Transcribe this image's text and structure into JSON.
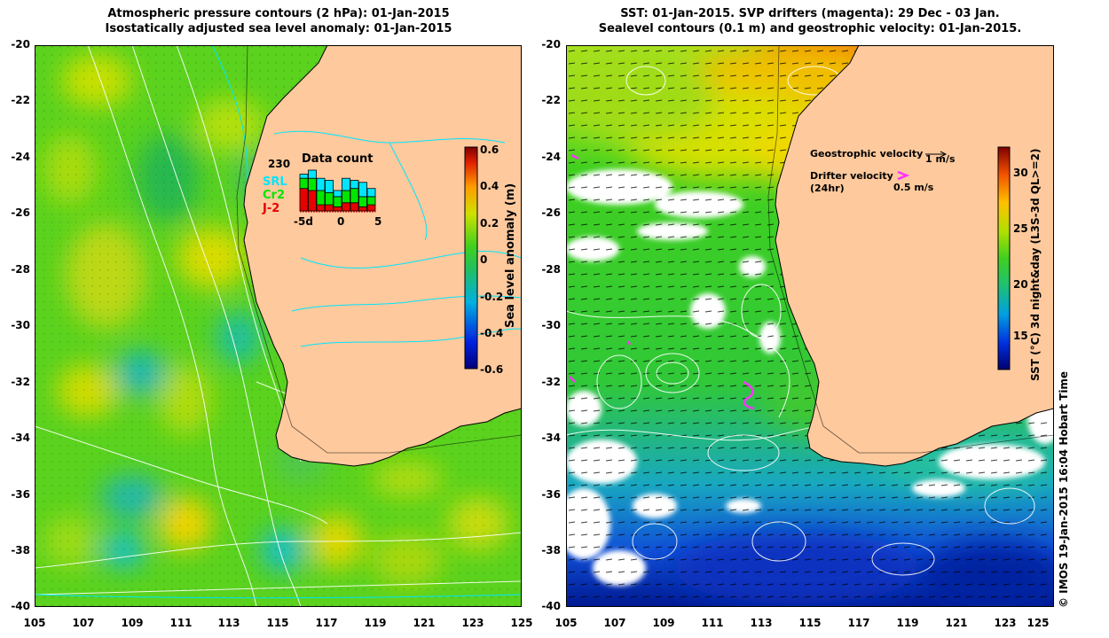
{
  "left_panel": {
    "title_line1": "Atmospheric pressure contours (2 hPa): 01-Jan-2015",
    "title_line2": "Isostatically adjusted sea level anomaly: 01-Jan-2015",
    "y_ticks": [
      "-20",
      "-22",
      "-24",
      "-26",
      "-28",
      "-30",
      "-32",
      "-34",
      "-36",
      "-38",
      "-40"
    ],
    "x_ticks": [
      "105",
      "107",
      "109",
      "111",
      "113",
      "115",
      "117",
      "119",
      "121",
      "123",
      "125"
    ],
    "colorbar": {
      "label": "Sea level anomaly (m)",
      "ticks": [
        "0.6",
        "0.4",
        "0.2",
        "0",
        "-0.2",
        "-0.4",
        "-0.6"
      ]
    },
    "inset": {
      "title": "Data count",
      "max_label": "230",
      "series": [
        {
          "name": "SRL",
          "color": "#00e6ff"
        },
        {
          "name": "Cr2",
          "color": "#00e600"
        },
        {
          "name": "J-2",
          "color": "#e60000"
        }
      ],
      "x_ticks": [
        "-5d",
        "0",
        "5"
      ],
      "bars": [
        {
          "red": 0.55,
          "green": 0.25,
          "cyan": 0.1
        },
        {
          "red": 0.5,
          "green": 0.3,
          "cyan": 0.2
        },
        {
          "red": 0.15,
          "green": 0.35,
          "cyan": 0.3
        },
        {
          "red": 0.15,
          "green": 0.3,
          "cyan": 0.3
        },
        {
          "red": 0.1,
          "green": 0.25,
          "cyan": 0.15
        },
        {
          "red": 0.2,
          "green": 0.3,
          "cyan": 0.3
        },
        {
          "red": 0.2,
          "green": 0.35,
          "cyan": 0.2
        },
        {
          "red": 0.1,
          "green": 0.25,
          "cyan": 0.35
        },
        {
          "red": 0.15,
          "green": 0.2,
          "cyan": 0.2
        }
      ]
    }
  },
  "right_panel": {
    "title_line1": "SST: 01-Jan-2015. SVP drifters (magenta): 29 Dec - 03 Jan.",
    "title_line2": "Sealevel contours (0.1 m) and geostrophic velocity: 01-Jan-2015.",
    "y_ticks": [
      "-20",
      "-22",
      "-24",
      "-26",
      "-28",
      "-30",
      "-32",
      "-34",
      "-36",
      "-38",
      "-40"
    ],
    "x_ticks": [
      "105",
      "107",
      "109",
      "111",
      "113",
      "115",
      "117",
      "119",
      "121",
      "123",
      "125"
    ],
    "colorbar": {
      "label": "SST (°C) 3d night&day (L3S-3d QL>=2)",
      "ticks": [
        "30",
        "25",
        "20",
        "15"
      ]
    },
    "legend": {
      "geo_label": "Geostrophic velocity",
      "geo_value": "1 m/s",
      "drifter_label": "Drifter velocity",
      "drifter_sub": "(24hr)",
      "drifter_value": "0.5 m/s"
    }
  },
  "credit": "© IMOS 19-Jan-2015 16:04 Hobart Time",
  "colors": {
    "land": "#fdc99d",
    "coast": "#000000",
    "contour_white": "#ffffff",
    "contour_cyan": "#00e6ff",
    "drifter": "#ff33ff"
  }
}
